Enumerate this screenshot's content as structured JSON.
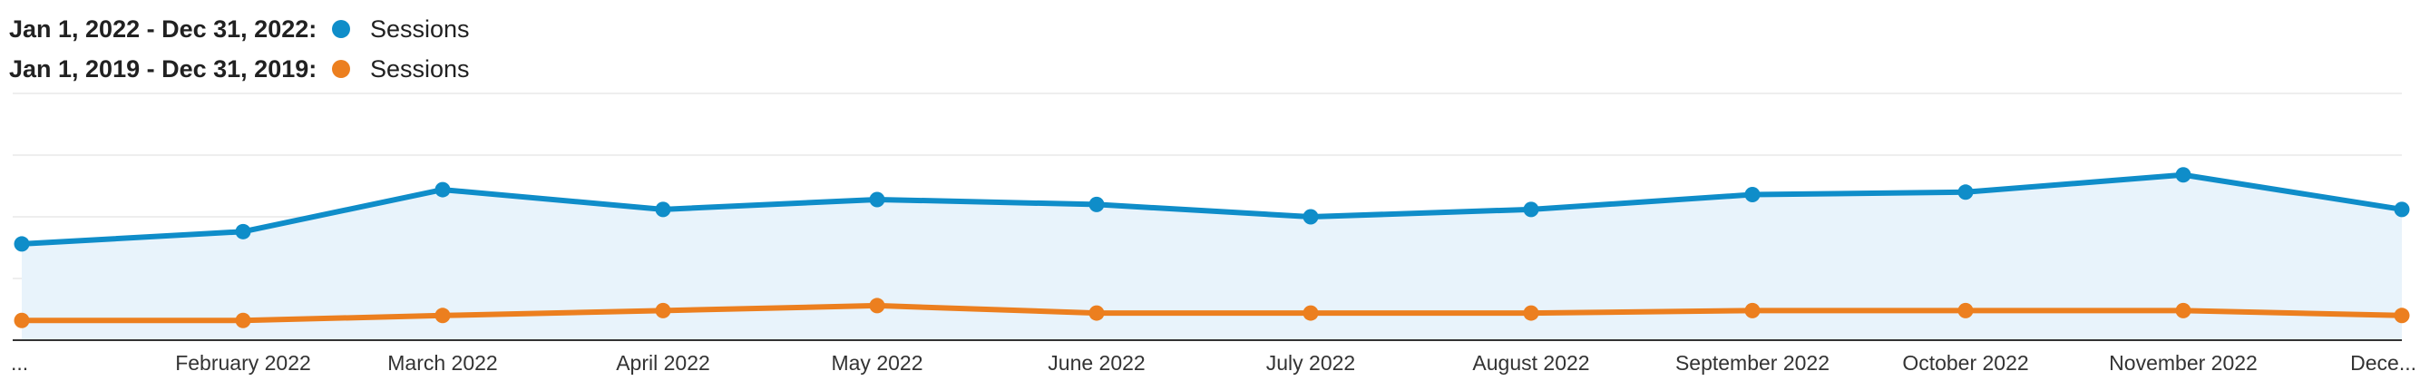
{
  "legend": {
    "series_a_range": "Jan 1, 2022 - Dec 31, 2022:",
    "series_a_name": "Sessions",
    "series_b_range": "Jan 1, 2019 - Dec 31, 2019:",
    "series_b_name": "Sessions"
  },
  "chart_data": {
    "type": "line",
    "title": "",
    "xlabel": "",
    "ylabel": "",
    "ylim": [
      0,
      100
    ],
    "grid": true,
    "legend_position": "top-left",
    "categories": [
      "...",
      "February 2022",
      "March 2022",
      "April 2022",
      "May 2022",
      "June 2022",
      "July 2022",
      "August 2022",
      "September 2022",
      "October 2022",
      "November 2022",
      "Dece..."
    ],
    "series": [
      {
        "name": "Sessions",
        "color": "#0f8dc9",
        "area": true,
        "values": [
          39,
          44,
          61,
          53,
          57,
          55,
          50,
          53,
          59,
          60,
          67,
          53
        ]
      },
      {
        "name": "Sessions",
        "color": "#ec7f1f",
        "area": false,
        "values": [
          8,
          8,
          10,
          12,
          14,
          11,
          11,
          11,
          12,
          12,
          12,
          10
        ]
      }
    ]
  }
}
